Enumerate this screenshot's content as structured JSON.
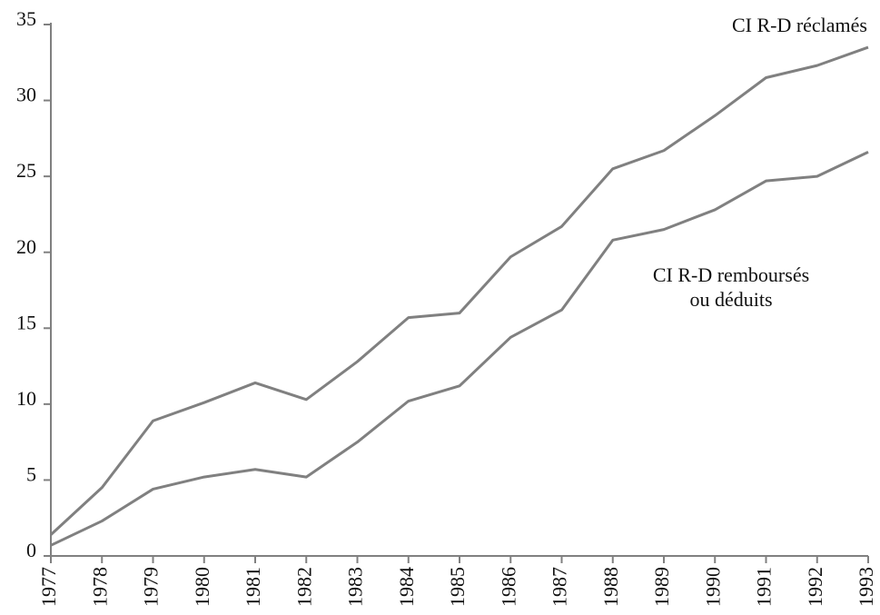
{
  "chart_data": {
    "type": "line",
    "x": [
      1977,
      1978,
      1979,
      1980,
      1981,
      1982,
      1983,
      1984,
      1985,
      1986,
      1987,
      1988,
      1989,
      1990,
      1991,
      1992,
      1993
    ],
    "series": [
      {
        "label": [
          "CI R-D réclamés"
        ],
        "color": "#808080",
        "values": [
          1.4,
          4.5,
          8.9,
          10.1,
          11.4,
          10.3,
          12.8,
          15.7,
          16.0,
          19.7,
          21.7,
          25.5,
          26.7,
          29.0,
          31.5,
          32.3,
          33.5
        ]
      },
      {
        "label": [
          "CI R-D remboursés",
          "ou déduits"
        ],
        "color": "#808080",
        "values": [
          0.7,
          2.3,
          4.4,
          5.2,
          5.7,
          5.2,
          7.5,
          10.2,
          11.2,
          14.4,
          16.2,
          20.8,
          21.5,
          22.8,
          24.7,
          25.0,
          26.6
        ]
      }
    ],
    "xlim": [
      1977,
      1993
    ],
    "xticks": [
      1977,
      1978,
      1979,
      1980,
      1981,
      1982,
      1983,
      1984,
      1985,
      1986,
      1987,
      1988,
      1989,
      1990,
      1991,
      1992,
      1993
    ],
    "ylim": [
      0,
      35
    ],
    "yticks": [
      0,
      5,
      10,
      15,
      20,
      25,
      30,
      35
    ],
    "grid": false
  }
}
